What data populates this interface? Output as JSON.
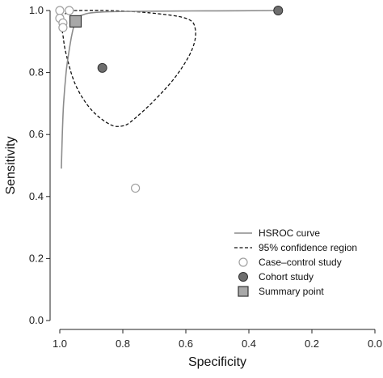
{
  "chart_data": {
    "type": "scatter",
    "title": "",
    "xlabel": "Specificity",
    "ylabel": "Sensitivity",
    "x_reversed": true,
    "xlim": [
      1.0,
      0.0
    ],
    "ylim": [
      0.0,
      1.0
    ],
    "x_ticks": [
      "1.0",
      "0.8",
      "0.6",
      "0.4",
      "0.2",
      "0.0"
    ],
    "y_ticks": [
      "0.0",
      "0.2",
      "0.4",
      "0.6",
      "0.8",
      "1.0"
    ],
    "grid": false,
    "legend_position": "bottom-right",
    "legend": [
      {
        "key": "hsroc",
        "label": "HSROC curve"
      },
      {
        "key": "ci",
        "label": "95% confidence region"
      },
      {
        "key": "case",
        "label": "Case–control study"
      },
      {
        "key": "cohort",
        "label": "Cohort study"
      },
      {
        "key": "summary",
        "label": "Summary point"
      }
    ],
    "colors": {
      "hsroc": "#8c8c8c",
      "ci": "#111111",
      "cohort_fill": "#6e6e6e",
      "case_stroke": "#a0a0a0",
      "summary_fill": "#a8a8a8"
    },
    "case_control_studies": [
      {
        "specificity": 1.0,
        "sensitivity": 1.0
      },
      {
        "specificity": 0.97,
        "sensitivity": 1.0
      },
      {
        "specificity": 1.0,
        "sensitivity": 0.975
      },
      {
        "specificity": 0.99,
        "sensitivity": 0.96
      },
      {
        "specificity": 0.99,
        "sensitivity": 0.945
      },
      {
        "specificity": 0.76,
        "sensitivity": 0.427
      }
    ],
    "cohort_studies": [
      {
        "specificity": 0.307,
        "sensitivity": 1.0
      },
      {
        "specificity": 0.865,
        "sensitivity": 0.815
      }
    ],
    "summary_point": {
      "specificity": 0.95,
      "sensitivity": 0.965
    },
    "hsroc_curve": [
      {
        "specificity": 0.995,
        "sensitivity": 0.49
      },
      {
        "specificity": 0.992,
        "sensitivity": 0.6
      },
      {
        "specificity": 0.988,
        "sensitivity": 0.7
      },
      {
        "specificity": 0.98,
        "sensitivity": 0.8
      },
      {
        "specificity": 0.972,
        "sensitivity": 0.86
      },
      {
        "specificity": 0.962,
        "sensitivity": 0.92
      },
      {
        "specificity": 0.95,
        "sensitivity": 0.965
      },
      {
        "specificity": 0.93,
        "sensitivity": 0.985
      },
      {
        "specificity": 0.87,
        "sensitivity": 0.995
      },
      {
        "specificity": 0.7,
        "sensitivity": 0.998
      },
      {
        "specificity": 0.5,
        "sensitivity": 0.999
      },
      {
        "specificity": 0.307,
        "sensitivity": 1.0
      }
    ],
    "confidence_region": [
      {
        "specificity": 0.955,
        "sensitivity": 1.0
      },
      {
        "specificity": 0.85,
        "sensitivity": 1.0
      },
      {
        "specificity": 0.72,
        "sensitivity": 0.993
      },
      {
        "specificity": 0.6,
        "sensitivity": 0.975
      },
      {
        "specificity": 0.57,
        "sensitivity": 0.94
      },
      {
        "specificity": 0.58,
        "sensitivity": 0.875
      },
      {
        "specificity": 0.63,
        "sensitivity": 0.79
      },
      {
        "specificity": 0.7,
        "sensitivity": 0.71
      },
      {
        "specificity": 0.77,
        "sensitivity": 0.645
      },
      {
        "specificity": 0.8,
        "sensitivity": 0.628
      },
      {
        "specificity": 0.84,
        "sensitivity": 0.632
      },
      {
        "specificity": 0.9,
        "sensitivity": 0.68
      },
      {
        "specificity": 0.95,
        "sensitivity": 0.76
      },
      {
        "specificity": 0.98,
        "sensitivity": 0.86
      },
      {
        "specificity": 0.99,
        "sensitivity": 0.92
      },
      {
        "specificity": 0.995,
        "sensitivity": 0.96
      },
      {
        "specificity": 0.99,
        "sensitivity": 0.985
      },
      {
        "specificity": 0.955,
        "sensitivity": 1.0
      }
    ]
  }
}
